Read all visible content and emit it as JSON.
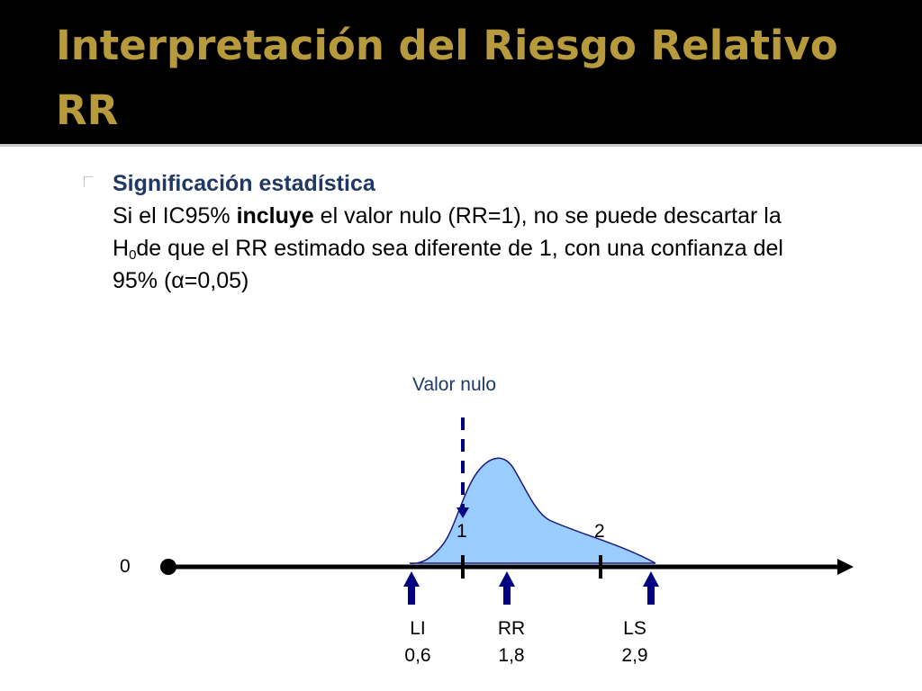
{
  "slide": {
    "title_line1": "Interpretación del Riesgo Relativo",
    "title_line2": "RR",
    "bullet_heading": "Significación estadística",
    "para_part1": "Si el IC95% ",
    "para_bold": "incluye",
    "para_part2": " el valor nulo (RR=1), no se puede descartar la H",
    "para_sub": "0",
    "para_part3": "de que el RR estimado sea diferente de 1, con una confianza del 95% (α=0,05)"
  },
  "diagram": {
    "null_label": "Valor nulo",
    "axis_zero": "0",
    "tick_1": "1",
    "tick_2": "2",
    "li_label": "LI",
    "li_value": "0,6",
    "rr_label": "RR",
    "rr_value": "1,8",
    "ls_label": "LS",
    "ls_value": "2,9",
    "colors": {
      "curve_fill": "#99ccff",
      "curve_stroke": "#1a1a80",
      "arrow": "#000080",
      "axis": "#000000",
      "title": "#b79a3c"
    }
  }
}
